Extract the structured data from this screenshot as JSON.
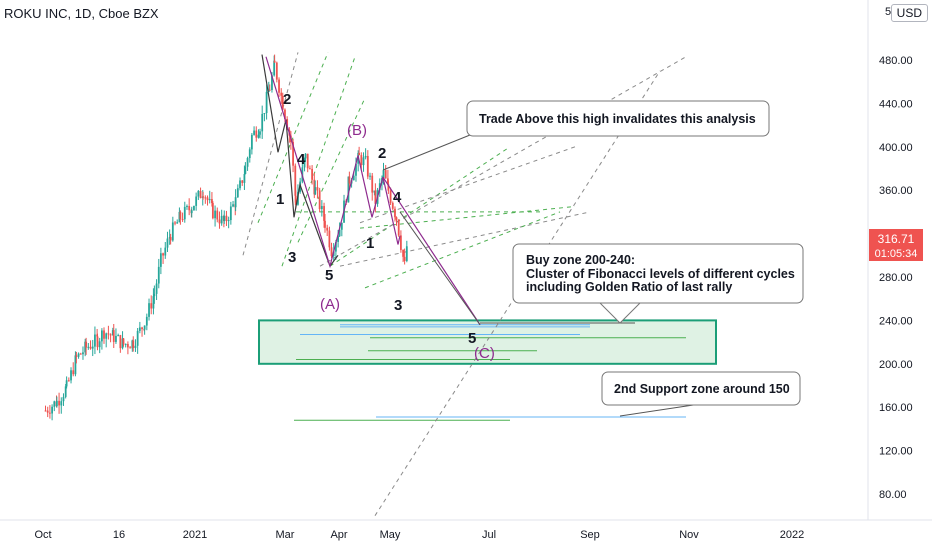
{
  "header": {
    "symbol_line": "ROKU INC, 1D, Cboe BZX",
    "currency": "USD",
    "top_cut_label": "5"
  },
  "colors": {
    "up": "#26a69a",
    "down": "#ef5350",
    "price_tag": "#ef5350",
    "buy_zone_fill": "#dff2e4",
    "buy_zone_border": "#1b9e77",
    "wave_purple": "#8e2b8e",
    "fib_green": "#4caf50",
    "fib_blue": "#64b5f6",
    "trendline_gray": "#8a8a8a"
  },
  "price_tag": {
    "value": "316.71",
    "countdown": "01:05:34"
  },
  "chart_data": {
    "type": "candlestick",
    "title": "ROKU INC, 1D, Cboe BZX",
    "y_ticks": [
      80,
      120,
      160,
      200,
      240,
      280,
      320,
      360,
      400,
      440,
      480
    ],
    "y_tick_labels": [
      "80.00",
      "120.00",
      "160.00",
      "200.00",
      "240.00",
      "280.00",
      "320.00",
      "360.00",
      "400.00",
      "440.00",
      "480.00"
    ],
    "x_tick_labels": [
      "Oct",
      "16",
      "2021",
      "Mar",
      "Apr",
      "May",
      "Jul",
      "Sep",
      "Nov",
      "2022"
    ],
    "ylim": [
      40,
      520
    ],
    "buy_zone": {
      "low": 200,
      "high": 240
    },
    "second_support": 150,
    "close_approx": [
      [
        "2020-10-01",
        157
      ],
      [
        "2020-10-08",
        165
      ],
      [
        "2020-10-14",
        178
      ],
      [
        "2020-10-20",
        205
      ],
      [
        "2020-10-26",
        215
      ],
      [
        "2020-11-02",
        222
      ],
      [
        "2020-11-06",
        230
      ],
      [
        "2020-11-12",
        225
      ],
      [
        "2020-11-18",
        218
      ],
      [
        "2020-11-24",
        220
      ],
      [
        "2020-12-01",
        238
      ],
      [
        "2020-12-07",
        265
      ],
      [
        "2020-12-11",
        295
      ],
      [
        "2020-12-17",
        320
      ],
      [
        "2020-12-23",
        335
      ],
      [
        "2020-12-30",
        345
      ],
      [
        "2021-01-06",
        360
      ],
      [
        "2021-01-12",
        340
      ],
      [
        "2021-01-19",
        330
      ],
      [
        "2021-01-26",
        350
      ],
      [
        "2021-02-01",
        380
      ],
      [
        "2021-02-05",
        410
      ],
      [
        "2021-02-10",
        420
      ],
      [
        "2021-02-16",
        455
      ],
      [
        "2021-02-19",
        475
      ],
      [
        "2021-02-24",
        440
      ],
      [
        "2021-03-01",
        405
      ],
      [
        "2021-03-04",
        350
      ],
      [
        "2021-03-10",
        390
      ],
      [
        "2021-03-16",
        360
      ],
      [
        "2021-03-22",
        330
      ],
      [
        "2021-03-26",
        305
      ],
      [
        "2021-03-31",
        325
      ],
      [
        "2021-04-06",
        370
      ],
      [
        "2021-04-12",
        390
      ],
      [
        "2021-04-16",
        385
      ],
      [
        "2021-04-22",
        350
      ],
      [
        "2021-04-27",
        375
      ],
      [
        "2021-04-30",
        360
      ],
      [
        "2021-05-05",
        335
      ],
      [
        "2021-05-10",
        290
      ],
      [
        "2021-05-12",
        317
      ]
    ]
  },
  "annotations": {
    "callout_invalidation": "Trade Above this high invalidates this analysis",
    "callout_buy_zone": [
      "Buy zone 200-240:",
      "Cluster of Fibonacci levels of different cycles",
      "including Golden Ratio of last rally"
    ],
    "callout_support": "2nd Support zone around 150",
    "waves": {
      "w2_top": "2",
      "w4_top": "4",
      "w1": "1",
      "w3": "3",
      "w5": "5",
      "wA": "(A)",
      "wB": "(B)",
      "w2_b": "2",
      "w4_b": "4",
      "w1_b": "1",
      "w3_b": "3",
      "w5_c": "5",
      "wC": "(C)"
    }
  }
}
